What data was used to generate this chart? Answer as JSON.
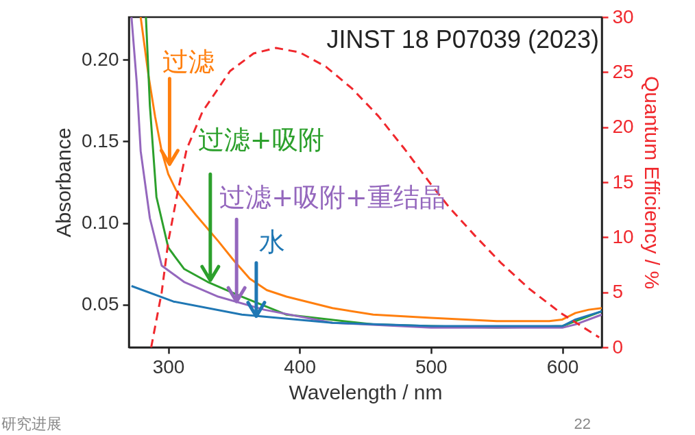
{
  "chart_data": {
    "type": "line",
    "xlabel": "Wavelength / nm",
    "ylabel": "Absorbance",
    "y2label": "Quantum Efficiency / %",
    "xlim": [
      270,
      630
    ],
    "xticks": [
      300,
      400,
      500,
      600
    ],
    "ylim": [
      0.024,
      0.226
    ],
    "yticks": [
      0.05,
      {
        "value": 0.1,
        "label": "0.10"
      },
      0.15,
      {
        "value": 0.2,
        "label": "0.20"
      }
    ],
    "y2lim": [
      0,
      30
    ],
    "y2ticks": [
      0,
      5,
      10,
      15,
      20,
      25,
      30
    ],
    "grid": false,
    "series": [
      {
        "color": "#ff7f0e",
        "x": [
          279,
          285,
          290,
          295,
          300,
          306,
          321,
          338,
          350,
          362,
          375,
          390,
          425,
          456,
          500,
          550,
          590,
          600,
          610,
          620,
          630
        ],
        "values": [
          0.226,
          0.19,
          0.165,
          0.144,
          0.13,
          0.12,
          0.105,
          0.089,
          0.077,
          0.066,
          0.059,
          0.055,
          0.048,
          0.044,
          0.042,
          0.04,
          0.04,
          0.041,
          0.045,
          0.047,
          0.048
        ]
      },
      {
        "color": "#2ca02c",
        "x": [
          283,
          286,
          291,
          300,
          312,
          330,
          356,
          390,
          456,
          500,
          550,
          600,
          610,
          630
        ],
        "values": [
          0.226,
          0.172,
          0.116,
          0.085,
          0.072,
          0.064,
          0.055,
          0.044,
          0.038,
          0.037,
          0.036,
          0.037,
          0.04,
          0.046
        ]
      },
      {
        "color": "#9467bd",
        "x": [
          272,
          276,
          279,
          286,
          295,
          312,
          338,
          373,
          425,
          500,
          550,
          600,
          610,
          630
        ],
        "values": [
          0.226,
          0.186,
          0.144,
          0.103,
          0.074,
          0.064,
          0.055,
          0.047,
          0.039,
          0.036,
          0.036,
          0.036,
          0.038,
          0.044
        ]
      },
      {
        "color": "#1f77b4",
        "x": [
          272,
          304,
          356,
          425,
          500,
          550,
          600,
          610,
          630
        ],
        "values": [
          0.0615,
          0.052,
          0.044,
          0.039,
          0.037,
          0.037,
          0.037,
          0.041,
          0.046
        ]
      },
      {
        "color": "#f0282d",
        "axis": "y2",
        "line_style": "dashed",
        "x": [
          287,
          295,
          300,
          307,
          314,
          326,
          347,
          365,
          382,
          400,
          420,
          440,
          460,
          480,
          500,
          514,
          533,
          553,
          575,
          599,
          628
        ],
        "values": [
          0,
          5,
          9.6,
          14,
          18,
          21.4,
          25.1,
          26.7,
          27.2,
          26.8,
          25.5,
          23.5,
          21,
          18,
          14.8,
          12.7,
          10.2,
          7.7,
          5.3,
          3.1,
          0.9
        ]
      }
    ],
    "annotations": [
      {
        "text": "过滤",
        "x": 301,
        "y": 0.136
      },
      {
        "text": "过滤+吸附",
        "x": 332,
        "y": 0.065
      },
      {
        "text": "过滤+吸附+重结晶",
        "x": 352,
        "y": 0.052
      },
      {
        "text": "水",
        "x": 367,
        "y": 0.043
      },
      "JINST 18 P07039 (2023)",
      "研究进展",
      "22"
    ]
  }
}
